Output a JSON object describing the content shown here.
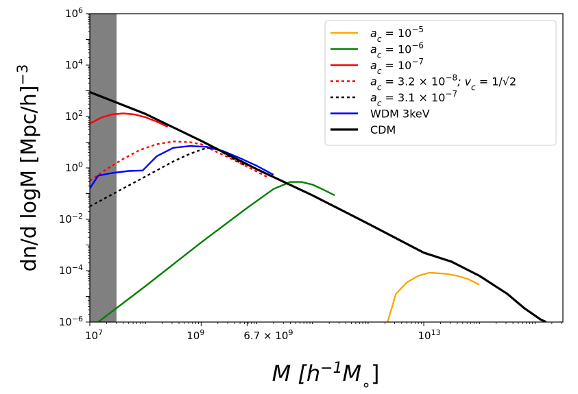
{
  "chart_data": {
    "type": "line",
    "xscale": "log",
    "yscale": "log",
    "xlim_log10": [
      7,
      15.5
    ],
    "ylim_log10": [
      -6,
      6
    ],
    "xlabel": {
      "prefix": "M [h",
      "sup": "−1",
      "suffix": "M",
      "sub": "∘",
      "close": "]"
    },
    "ylabel": {
      "main": "dn/d logM [Mpc/h]",
      "sup": "−3"
    },
    "x_ticks": [
      {
        "label": "10",
        "sup": "7",
        "value_log10": 7
      },
      {
        "label": "10",
        "sup": "9",
        "value_log10": 9
      },
      {
        "label": "6.7 × 10",
        "sup": "9",
        "value_log10": 9.826
      },
      {
        "label": "10",
        "sup": "13",
        "value_log10": 13
      }
    ],
    "y_ticks": [
      {
        "label": "10",
        "sup": "−6",
        "value_log10": -6
      },
      {
        "label": "10",
        "sup": "−4",
        "value_log10": -4
      },
      {
        "label": "10",
        "sup": "−2",
        "value_log10": -2
      },
      {
        "label": "10",
        "sup": "0",
        "value_log10": 0
      },
      {
        "label": "10",
        "sup": "2",
        "value_log10": 2
      },
      {
        "label": "10",
        "sup": "4",
        "value_log10": 4
      },
      {
        "label": "10",
        "sup": "6",
        "value_log10": 6
      }
    ],
    "shaded_region": {
      "x_log10": [
        7,
        7.48
      ],
      "color": "#808080"
    },
    "series": [
      {
        "key": "ac5",
        "color": "#ffa500",
        "dash": "",
        "legend": {
          "text": "a",
          "sub": "c",
          "rest": " = 10",
          "sup": "−5"
        },
        "points": [
          [
            12.35,
            -6
          ],
          [
            12.5,
            -4.9
          ],
          [
            12.7,
            -4.45
          ],
          [
            12.9,
            -4.2
          ],
          [
            13.1,
            -4.08
          ],
          [
            13.4,
            -4.12
          ],
          [
            13.6,
            -4.2
          ],
          [
            13.8,
            -4.33
          ],
          [
            14.0,
            -4.55
          ]
        ]
      },
      {
        "key": "ac6",
        "color": "#008000",
        "dash": "",
        "legend": {
          "text": "a",
          "sub": "c",
          "rest": " = 10",
          "sup": "−6"
        },
        "points": [
          [
            7.15,
            -6
          ],
          [
            8,
            -4.6
          ],
          [
            9,
            -2.9
          ],
          [
            9.8,
            -1.6
          ],
          [
            10.3,
            -0.82
          ],
          [
            10.6,
            -0.55
          ],
          [
            10.8,
            -0.55
          ],
          [
            11.0,
            -0.65
          ],
          [
            11.2,
            -0.85
          ],
          [
            11.4,
            -1.07
          ]
        ]
      },
      {
        "key": "ac7",
        "color": "#ff0000",
        "dash": "",
        "legend": {
          "text": "a",
          "sub": "c",
          "rest": " = 10",
          "sup": "−7"
        },
        "points": [
          [
            7,
            1.72
          ],
          [
            7.2,
            1.95
          ],
          [
            7.4,
            2.08
          ],
          [
            7.6,
            2.12
          ],
          [
            7.8,
            2.08
          ],
          [
            8.0,
            1.97
          ],
          [
            8.2,
            1.8
          ],
          [
            8.4,
            1.6
          ]
        ]
      },
      {
        "key": "ac38",
        "color": "#ff0000",
        "dash": "4,4",
        "legend": {
          "text": "a",
          "sub": "c",
          "rest": " = 3.2 × 10",
          "sup": "−8",
          "extra": "; v",
          "extra_sub": "c",
          "extra_rest": " = 1/√2"
        },
        "points": [
          [
            7,
            -0.5
          ],
          [
            7.3,
            -0.05
          ],
          [
            7.6,
            0.35
          ],
          [
            7.9,
            0.7
          ],
          [
            8.2,
            0.92
          ],
          [
            8.5,
            1.03
          ],
          [
            8.8,
            1.0
          ],
          [
            9.0,
            0.92
          ],
          [
            9.2,
            0.7
          ],
          [
            9.5,
            0.4
          ],
          [
            9.8,
            0.08
          ],
          [
            10.2,
            -0.37
          ]
        ]
      },
      {
        "key": "ac37",
        "color": "#000000",
        "dash": "4,4",
        "legend": {
          "text": "a",
          "sub": "c",
          "rest": " = 3.1 × 10",
          "sup": "−7"
        },
        "points": [
          [
            7,
            -1.5
          ],
          [
            7.3,
            -1.15
          ],
          [
            7.6,
            -0.8
          ],
          [
            7.9,
            -0.45
          ],
          [
            8.2,
            -0.1
          ],
          [
            8.5,
            0.25
          ],
          [
            8.8,
            0.55
          ],
          [
            9.1,
            0.78
          ],
          [
            9.3,
            0.72
          ],
          [
            9.5,
            0.45
          ],
          [
            9.8,
            0.08
          ]
        ]
      },
      {
        "key": "wdm",
        "color": "#0000ff",
        "dash": "",
        "legend": {
          "text": "WDM 3keV"
        },
        "points": [
          [
            7,
            -0.8
          ],
          [
            7.15,
            -0.3
          ],
          [
            7.4,
            -0.2
          ],
          [
            7.7,
            -0.12
          ],
          [
            7.95,
            -0.1
          ],
          [
            8.2,
            0.45
          ],
          [
            8.5,
            0.78
          ],
          [
            8.8,
            0.85
          ],
          [
            9.1,
            0.82
          ],
          [
            9.4,
            0.65
          ],
          [
            9.7,
            0.38
          ],
          [
            10.0,
            0.08
          ],
          [
            10.3,
            -0.27
          ]
        ]
      },
      {
        "key": "cdm",
        "color": "#000000",
        "dash": "",
        "width": 3.2,
        "legend": {
          "text": "CDM"
        },
        "points": [
          [
            7,
            2.95
          ],
          [
            8,
            2.1
          ],
          [
            9,
            1.05
          ],
          [
            10,
            -0.05
          ],
          [
            11,
            -1.07
          ],
          [
            12,
            -2.17
          ],
          [
            13,
            -3.3
          ],
          [
            13.5,
            -3.65
          ],
          [
            14,
            -4.2
          ],
          [
            14.5,
            -4.9
          ],
          [
            14.8,
            -5.45
          ],
          [
            15.1,
            -5.9
          ],
          [
            15.2,
            -6
          ]
        ]
      }
    ]
  }
}
